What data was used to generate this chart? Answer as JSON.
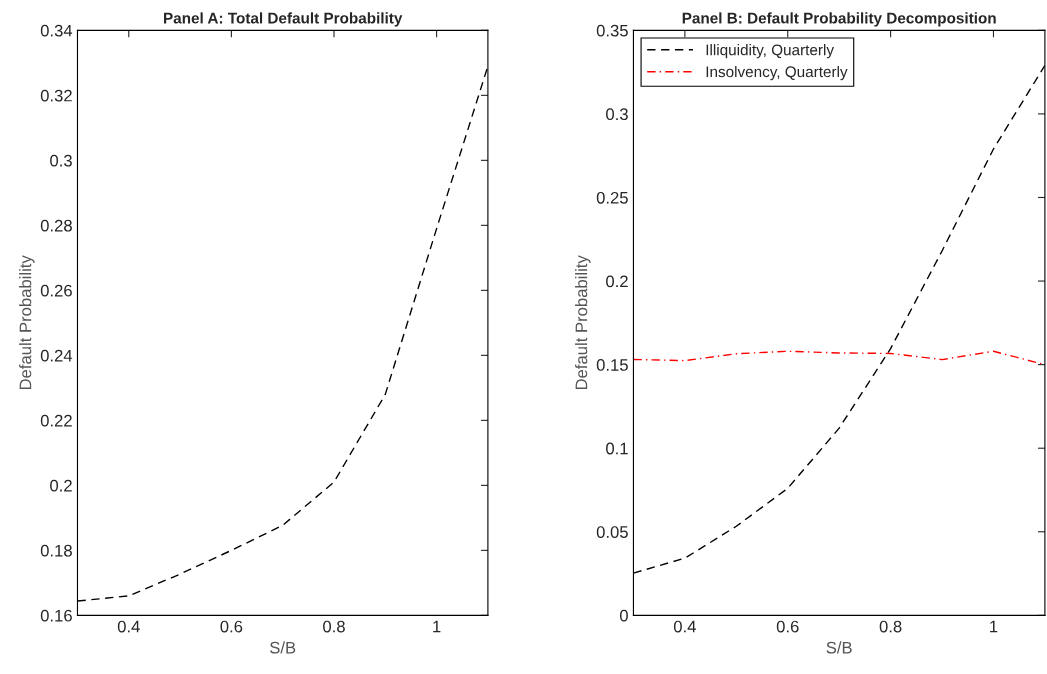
{
  "chart_data": [
    {
      "type": "line",
      "title": "Panel A: Total Default Probability",
      "xlabel": "S/B",
      "ylabel": "Default Probability",
      "x": [
        0.3,
        0.4,
        0.5,
        0.6,
        0.7,
        0.8,
        0.9,
        1.0,
        1.1
      ],
      "series": [
        {
          "color": "#000000",
          "line_style": "dashed",
          "values": [
            0.1644,
            0.166,
            0.1727,
            0.18,
            0.1877,
            0.201,
            0.228,
            0.279,
            0.329
          ]
        }
      ],
      "xlim": [
        0.3,
        1.1
      ],
      "xticks": [
        0.4,
        0.6,
        0.8,
        1
      ],
      "ylim": [
        0.16,
        0.34
      ],
      "yticks": [
        0.16,
        0.18,
        0.2,
        0.22,
        0.24,
        0.26,
        0.28,
        0.3,
        0.32,
        0.34
      ],
      "grid": false,
      "legend": false
    },
    {
      "type": "line",
      "title": "Panel B: Default Probability Decomposition",
      "xlabel": "S/B",
      "ylabel": "Default Probability",
      "x": [
        0.3,
        0.4,
        0.5,
        0.6,
        0.7,
        0.8,
        0.9,
        1.0,
        1.1
      ],
      "series": [
        {
          "name": "Illiquidity, Quarterly",
          "color": "#000000",
          "line_style": "dashed",
          "values": [
            0.0253,
            0.0342,
            0.0533,
            0.076,
            0.112,
            0.1596,
            0.218,
            0.279,
            0.329
          ]
        },
        {
          "name": "Insolvency, Quarterly",
          "color": "#ff0000",
          "line_style": "dashdot",
          "values": [
            0.1531,
            0.1524,
            0.1565,
            0.158,
            0.157,
            0.1567,
            0.153,
            0.158,
            0.15
          ]
        }
      ],
      "xlim": [
        0.3,
        1.1
      ],
      "xticks": [
        0.4,
        0.6,
        0.8,
        1
      ],
      "ylim": [
        0,
        0.35
      ],
      "yticks": [
        0,
        0.05,
        0.1,
        0.15,
        0.2,
        0.25,
        0.3,
        0.35
      ],
      "grid": false,
      "legend": "top left"
    }
  ]
}
